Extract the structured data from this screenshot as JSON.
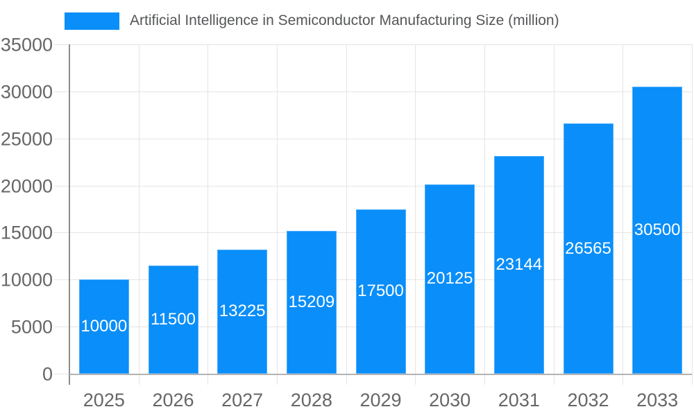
{
  "legend": {
    "label": "Artificial Intelligence in Semiconductor Manufacturing Size (million)"
  },
  "chart_data": {
    "type": "bar",
    "title": "Artificial Intelligence in Semiconductor Manufacturing Size (million)",
    "categories": [
      "2025",
      "2026",
      "2027",
      "2028",
      "2029",
      "2030",
      "2031",
      "2032",
      "2033"
    ],
    "values": [
      10000,
      11500,
      13225,
      15209,
      17500,
      20125,
      23144,
      26565,
      30500
    ],
    "series": [
      {
        "name": "Artificial Intelligence in Semiconductor Manufacturing Size (million)",
        "values": [
          10000,
          11500,
          13225,
          15209,
          17500,
          20125,
          23144,
          26565,
          30500
        ]
      }
    ],
    "xlabel": "",
    "ylabel": "",
    "ylim": [
      0,
      35000
    ],
    "ytick_step": 5000,
    "yticks": [
      0,
      5000,
      10000,
      15000,
      20000,
      25000,
      30000,
      35000
    ],
    "grid": true,
    "legend_position": "top-left",
    "value_labels": "inside-center",
    "colors": {
      "bar": "#0a8ef9",
      "bar_value_text": "#ffffff",
      "grid_line": "#e4e4e4",
      "y_axis_line": "#8c8c8c",
      "x_axis_line": "#b3b3b3",
      "axis_text": "#666666",
      "legend_text": "#555658",
      "background": "#ffffff"
    }
  }
}
